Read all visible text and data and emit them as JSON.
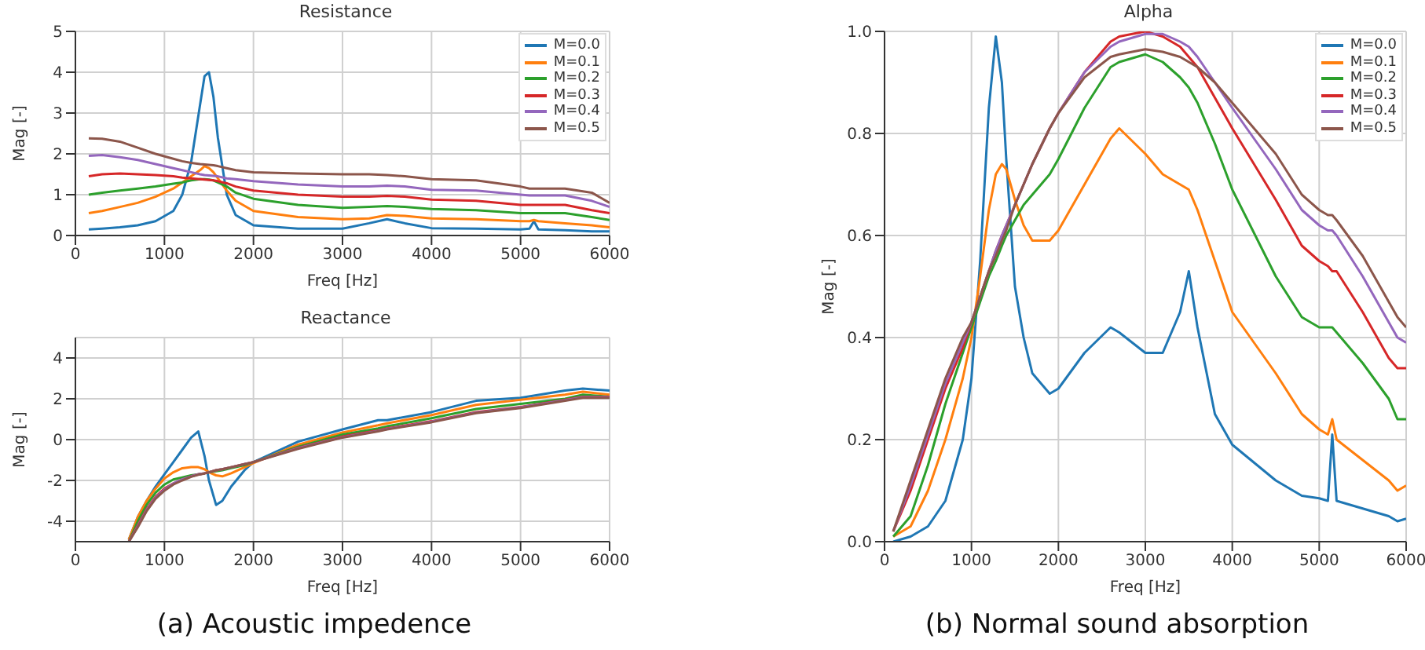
{
  "chart_data": [
    {
      "type": "line",
      "title": "Resistance",
      "xlabel": "Freq [Hz]",
      "ylabel": "Mag [-]",
      "xlim": [
        0,
        6000
      ],
      "xticks": [
        0,
        1000,
        2000,
        3000,
        4000,
        5000,
        6000
      ],
      "ylim": [
        0,
        5
      ],
      "yticks": [
        0,
        1,
        2,
        3,
        4,
        5
      ],
      "grid": true,
      "legend": "top right",
      "marker": "none",
      "line_style": "solid",
      "x": [
        150,
        300,
        500,
        700,
        900,
        1100,
        1200,
        1300,
        1400,
        1450,
        1500,
        1550,
        1600,
        1700,
        1800,
        2000,
        2500,
        3000,
        3300,
        3500,
        3700,
        4000,
        4500,
        5000,
        5100,
        5150,
        5200,
        5500,
        5800,
        6000
      ],
      "series": [
        {
          "name": "M=0.0",
          "color": "#1f77b4",
          "values": [
            0.15,
            0.17,
            0.2,
            0.25,
            0.35,
            0.6,
            1.0,
            1.8,
            3.2,
            3.9,
            4.0,
            3.4,
            2.4,
            1.0,
            0.5,
            0.25,
            0.17,
            0.17,
            0.3,
            0.4,
            0.3,
            0.18,
            0.17,
            0.15,
            0.17,
            0.35,
            0.15,
            0.13,
            0.1,
            0.1
          ]
        },
        {
          "name": "M=0.1",
          "color": "#ff7f0e",
          "values": [
            0.55,
            0.6,
            0.7,
            0.8,
            0.95,
            1.15,
            1.3,
            1.45,
            1.6,
            1.7,
            1.65,
            1.55,
            1.4,
            1.1,
            0.85,
            0.6,
            0.45,
            0.4,
            0.42,
            0.5,
            0.48,
            0.42,
            0.4,
            0.35,
            0.35,
            0.38,
            0.35,
            0.3,
            0.25,
            0.2
          ]
        },
        {
          "name": "M=0.2",
          "color": "#2ca02c",
          "values": [
            1.0,
            1.05,
            1.1,
            1.15,
            1.2,
            1.27,
            1.3,
            1.35,
            1.38,
            1.38,
            1.37,
            1.35,
            1.3,
            1.2,
            1.05,
            0.9,
            0.75,
            0.68,
            0.7,
            0.72,
            0.7,
            0.65,
            0.62,
            0.55,
            0.55,
            0.55,
            0.55,
            0.55,
            0.45,
            0.38
          ]
        },
        {
          "name": "M=0.3",
          "color": "#d62728",
          "values": [
            1.45,
            1.5,
            1.52,
            1.5,
            1.48,
            1.45,
            1.42,
            1.4,
            1.38,
            1.37,
            1.36,
            1.35,
            1.33,
            1.28,
            1.2,
            1.1,
            1.0,
            0.95,
            0.95,
            0.97,
            0.95,
            0.88,
            0.85,
            0.75,
            0.75,
            0.75,
            0.75,
            0.75,
            0.62,
            0.55
          ]
        },
        {
          "name": "M=0.4",
          "color": "#9467bd",
          "values": [
            1.95,
            1.97,
            1.92,
            1.85,
            1.75,
            1.65,
            1.6,
            1.55,
            1.5,
            1.48,
            1.47,
            1.46,
            1.45,
            1.4,
            1.38,
            1.33,
            1.25,
            1.2,
            1.2,
            1.22,
            1.2,
            1.12,
            1.1,
            1.0,
            0.98,
            0.98,
            0.98,
            0.98,
            0.85,
            0.7
          ]
        },
        {
          "name": "M=0.5",
          "color": "#8c564b",
          "values": [
            2.38,
            2.37,
            2.3,
            2.15,
            2.0,
            1.88,
            1.82,
            1.78,
            1.75,
            1.74,
            1.73,
            1.72,
            1.7,
            1.65,
            1.6,
            1.55,
            1.52,
            1.5,
            1.5,
            1.48,
            1.45,
            1.38,
            1.35,
            1.2,
            1.15,
            1.15,
            1.15,
            1.15,
            1.05,
            0.8
          ]
        }
      ]
    },
    {
      "type": "line",
      "title": "Reactance",
      "xlabel": "Freq [Hz]",
      "ylabel": "Mag [-]",
      "xlim": [
        0,
        6000
      ],
      "xticks": [
        0,
        1000,
        2000,
        3000,
        4000,
        5000,
        6000
      ],
      "ylim": [
        -5,
        5
      ],
      "yticks": [
        -4,
        -2,
        0,
        2,
        4
      ],
      "grid": true,
      "marker": "none",
      "line_style": "solid",
      "annotations": [
        "(a) Acoustic impedence"
      ],
      "x": [
        600,
        700,
        800,
        900,
        1000,
        1100,
        1200,
        1300,
        1380,
        1450,
        1500,
        1580,
        1650,
        1750,
        1900,
        2000,
        2500,
        3000,
        3400,
        3500,
        4000,
        4500,
        5000,
        5500,
        5700,
        6000
      ],
      "series": [
        {
          "color": "#1f77b4",
          "values": [
            -4.9,
            -3.8,
            -3.0,
            -2.3,
            -1.7,
            -1.1,
            -0.5,
            0.1,
            0.4,
            -0.8,
            -2.0,
            -3.2,
            -3.0,
            -2.3,
            -1.5,
            -1.1,
            -0.1,
            0.5,
            0.95,
            0.95,
            1.35,
            1.9,
            2.05,
            2.4,
            2.5,
            2.4
          ]
        },
        {
          "color": "#ff7f0e",
          "values": [
            -4.9,
            -3.8,
            -3.0,
            -2.4,
            -1.9,
            -1.6,
            -1.4,
            -1.35,
            -1.35,
            -1.45,
            -1.6,
            -1.75,
            -1.8,
            -1.65,
            -1.35,
            -1.15,
            -0.25,
            0.35,
            0.7,
            0.8,
            1.2,
            1.7,
            1.95,
            2.2,
            2.35,
            2.2
          ]
        },
        {
          "color": "#2ca02c",
          "values": [
            -5.0,
            -4.0,
            -3.2,
            -2.6,
            -2.2,
            -1.95,
            -1.85,
            -1.75,
            -1.7,
            -1.65,
            -1.6,
            -1.55,
            -1.5,
            -1.4,
            -1.25,
            -1.1,
            -0.35,
            0.25,
            0.55,
            0.65,
            1.05,
            1.5,
            1.75,
            2.0,
            2.2,
            2.1
          ]
        },
        {
          "color": "#d62728",
          "values": [
            -5.0,
            -4.2,
            -3.4,
            -2.8,
            -2.4,
            -2.15,
            -1.95,
            -1.8,
            -1.7,
            -1.65,
            -1.6,
            -1.5,
            -1.45,
            -1.35,
            -1.2,
            -1.1,
            -0.4,
            0.15,
            0.45,
            0.55,
            0.9,
            1.35,
            1.6,
            1.95,
            2.1,
            2.1
          ]
        },
        {
          "color": "#9467bd",
          "values": [
            -5.0,
            -4.25,
            -3.45,
            -2.85,
            -2.45,
            -2.15,
            -1.95,
            -1.8,
            -1.7,
            -1.65,
            -1.6,
            -1.5,
            -1.45,
            -1.35,
            -1.2,
            -1.1,
            -0.42,
            0.12,
            0.42,
            0.52,
            0.88,
            1.32,
            1.58,
            1.93,
            2.08,
            2.08
          ]
        },
        {
          "color": "#8c564b",
          "values": [
            -5.0,
            -4.3,
            -3.5,
            -2.9,
            -2.5,
            -2.2,
            -2.0,
            -1.82,
            -1.72,
            -1.66,
            -1.6,
            -1.5,
            -1.45,
            -1.35,
            -1.2,
            -1.1,
            -0.45,
            0.1,
            0.4,
            0.5,
            0.85,
            1.3,
            1.55,
            1.9,
            2.05,
            2.05
          ]
        }
      ]
    },
    {
      "type": "line",
      "title": "Alpha",
      "xlabel": "Freq [Hz]",
      "ylabel": "Mag [-]",
      "xlim": [
        0,
        6000
      ],
      "xticks": [
        0,
        1000,
        2000,
        3000,
        4000,
        5000,
        6000
      ],
      "ylim": [
        0,
        1
      ],
      "yticks": [
        {
          "value": 0,
          "label": "0.0"
        },
        0.2,
        0.4,
        0.6,
        0.8,
        {
          "value": 1,
          "label": "1.0"
        }
      ],
      "grid": true,
      "legend": "top right",
      "marker": "none",
      "line_style": "solid",
      "annotations": [
        "(b) Normal sound absorption"
      ],
      "x": [
        100,
        300,
        500,
        700,
        900,
        1000,
        1100,
        1200,
        1280,
        1350,
        1400,
        1500,
        1600,
        1700,
        1900,
        2000,
        2300,
        2600,
        2700,
        3000,
        3200,
        3400,
        3500,
        3600,
        3800,
        4000,
        4500,
        4800,
        5000,
        5100,
        5150,
        5200,
        5500,
        5800,
        5900,
        6000
      ],
      "series": [
        {
          "name": "M=0.0",
          "color": "#1f77b4",
          "values": [
            0.0,
            0.01,
            0.03,
            0.08,
            0.2,
            0.32,
            0.55,
            0.85,
            0.99,
            0.9,
            0.75,
            0.5,
            0.4,
            0.33,
            0.29,
            0.3,
            0.37,
            0.42,
            0.41,
            0.37,
            0.37,
            0.45,
            0.53,
            0.42,
            0.25,
            0.19,
            0.12,
            0.09,
            0.085,
            0.08,
            0.21,
            0.08,
            0.065,
            0.05,
            0.04,
            0.045
          ]
        },
        {
          "name": "M=0.1",
          "color": "#ff7f0e",
          "values": [
            0.01,
            0.03,
            0.1,
            0.2,
            0.32,
            0.4,
            0.52,
            0.65,
            0.72,
            0.74,
            0.73,
            0.67,
            0.62,
            0.59,
            0.59,
            0.61,
            0.7,
            0.79,
            0.81,
            0.76,
            0.72,
            0.7,
            0.69,
            0.65,
            0.55,
            0.45,
            0.33,
            0.25,
            0.22,
            0.21,
            0.24,
            0.2,
            0.16,
            0.12,
            0.1,
            0.11
          ]
        },
        {
          "name": "M=0.2",
          "color": "#2ca02c",
          "values": [
            0.01,
            0.05,
            0.15,
            0.27,
            0.37,
            0.42,
            0.47,
            0.52,
            0.55,
            0.58,
            0.6,
            0.63,
            0.66,
            0.68,
            0.72,
            0.75,
            0.85,
            0.93,
            0.94,
            0.955,
            0.94,
            0.91,
            0.89,
            0.86,
            0.78,
            0.69,
            0.52,
            0.44,
            0.42,
            0.42,
            0.42,
            0.41,
            0.35,
            0.28,
            0.24,
            0.24
          ]
        },
        {
          "name": "M=0.3",
          "color": "#d62728",
          "values": [
            0.02,
            0.1,
            0.2,
            0.3,
            0.38,
            0.43,
            0.48,
            0.53,
            0.57,
            0.6,
            0.62,
            0.66,
            0.7,
            0.74,
            0.81,
            0.84,
            0.92,
            0.98,
            0.99,
            1.0,
            0.99,
            0.97,
            0.95,
            0.93,
            0.87,
            0.81,
            0.67,
            0.58,
            0.55,
            0.54,
            0.53,
            0.53,
            0.45,
            0.36,
            0.34,
            0.34
          ]
        },
        {
          "name": "M=0.4",
          "color": "#9467bd",
          "values": [
            0.02,
            0.11,
            0.21,
            0.31,
            0.39,
            0.43,
            0.48,
            0.53,
            0.57,
            0.6,
            0.62,
            0.66,
            0.7,
            0.74,
            0.81,
            0.84,
            0.92,
            0.97,
            0.98,
            0.995,
            0.995,
            0.98,
            0.97,
            0.95,
            0.9,
            0.85,
            0.73,
            0.65,
            0.62,
            0.61,
            0.61,
            0.6,
            0.52,
            0.43,
            0.4,
            0.39
          ]
        },
        {
          "name": "M=0.5",
          "color": "#8c564b",
          "values": [
            0.02,
            0.12,
            0.22,
            0.32,
            0.4,
            0.43,
            0.48,
            0.53,
            0.56,
            0.59,
            0.61,
            0.66,
            0.7,
            0.74,
            0.81,
            0.84,
            0.91,
            0.95,
            0.955,
            0.965,
            0.96,
            0.95,
            0.94,
            0.93,
            0.9,
            0.86,
            0.76,
            0.68,
            0.65,
            0.64,
            0.64,
            0.63,
            0.56,
            0.47,
            0.44,
            0.42
          ]
        }
      ]
    }
  ]
}
